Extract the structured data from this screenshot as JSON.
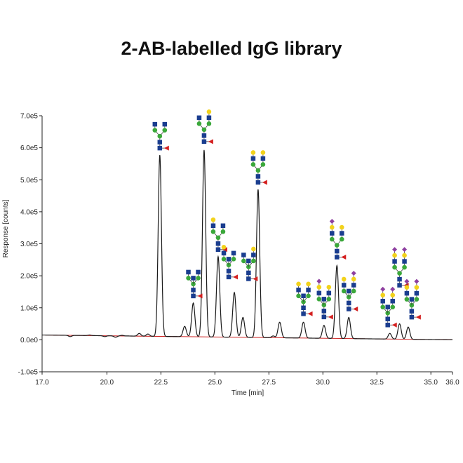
{
  "chart_data": {
    "type": "line",
    "title": "2-AB-labelled IgG library",
    "xlabel": "Time [min]",
    "ylabel": "Response [counts]",
    "xlim": [
      17.0,
      36.0
    ],
    "ylim": [
      -100000,
      700000
    ],
    "x_ticks": [
      17.0,
      20.0,
      22.5,
      25.0,
      27.5,
      30.0,
      32.5,
      35.0,
      36.0
    ],
    "x_tick_labels": [
      "17.0",
      "20.0",
      "22.5",
      "25.0",
      "27.5",
      "30.0",
      "32.5",
      "35.0",
      "36.0"
    ],
    "y_ticks": [
      -100000,
      0,
      100000,
      200000,
      300000,
      400000,
      500000,
      600000,
      700000
    ],
    "y_tick_labels": [
      "-1.0e5",
      "0.0e0",
      "1.0e5",
      "2.0e5",
      "3.0e5",
      "4.0e5",
      "5.0e5",
      "6.0e5",
      "7.0e5"
    ],
    "grid": false,
    "baseline": {
      "x": [
        17.0,
        36.0
      ],
      "y": [
        15000,
        0
      ]
    },
    "series": [
      {
        "name": "",
        "color": "#1a1a1a",
        "baseline_color": "#cc2222",
        "peaks": [
          {
            "x": 18.3,
            "y": 10000
          },
          {
            "x": 19.2,
            "y": 15000
          },
          {
            "x": 19.9,
            "y": 10000
          },
          {
            "x": 20.4,
            "y": 8000
          },
          {
            "x": 20.7,
            "y": 14000
          },
          {
            "x": 21.0,
            "y": 12000
          },
          {
            "x": 21.5,
            "y": 20000
          },
          {
            "x": 21.9,
            "y": 18000
          },
          {
            "x": 22.45,
            "y": 577000
          },
          {
            "x": 23.6,
            "y": 42000
          },
          {
            "x": 24.0,
            "y": 115000
          },
          {
            "x": 24.5,
            "y": 593000
          },
          {
            "x": 25.15,
            "y": 260000
          },
          {
            "x": 25.9,
            "y": 148000
          },
          {
            "x": 26.3,
            "y": 70000
          },
          {
            "x": 27.0,
            "y": 470000
          },
          {
            "x": 27.7,
            "y": 12000
          },
          {
            "x": 28.0,
            "y": 55000
          },
          {
            "x": 29.1,
            "y": 55000
          },
          {
            "x": 30.05,
            "y": 45000
          },
          {
            "x": 30.65,
            "y": 232000
          },
          {
            "x": 31.2,
            "y": 70000
          },
          {
            "x": 33.1,
            "y": 20000
          },
          {
            "x": 33.55,
            "y": 50000
          },
          {
            "x": 33.95,
            "y": 40000
          }
        ]
      }
    ],
    "annotations": [
      {
        "x": 22.45,
        "y": 577000,
        "icon": "glycan-G0F"
      },
      {
        "x": 24.0,
        "y": 115000,
        "icon": "glycan-G0F-bisect"
      },
      {
        "x": 24.5,
        "y": 593000,
        "icon": "glycan-G1F"
      },
      {
        "x": 25.15,
        "y": 260000,
        "icon": "glycan-G1F-isomer"
      },
      {
        "x": 25.9,
        "y": 148000,
        "icon": "glycan-G1F-bisect"
      },
      {
        "x": 26.3,
        "y": 70000,
        "icon": "glycan-G1F-bisect-isomer"
      },
      {
        "x": 27.0,
        "y": 470000,
        "icon": "glycan-G2F"
      },
      {
        "x": 29.1,
        "y": 55000,
        "icon": "glycan-G2F-bisect"
      },
      {
        "x": 30.05,
        "y": 45000,
        "icon": "glycan-G2FS1-bisect"
      },
      {
        "x": 30.65,
        "y": 232000,
        "icon": "glycan-G2FS1"
      },
      {
        "x": 31.2,
        "y": 70000,
        "icon": "glycan-G2FS1-isomer"
      },
      {
        "x": 33.1,
        "y": 20000,
        "icon": "glycan-G2FS2-bisect"
      },
      {
        "x": 33.55,
        "y": 50000,
        "icon": "glycan-G2FS2"
      },
      {
        "x": 33.95,
        "y": 40000,
        "icon": "glycan-G2FS2-isomer"
      }
    ]
  },
  "colors": {
    "hexnac": "#1a3d8f",
    "mannose": "#3aa83a",
    "galactose": "#f2d21b",
    "fucose": "#d42020",
    "sialic": "#8e3fa0"
  }
}
